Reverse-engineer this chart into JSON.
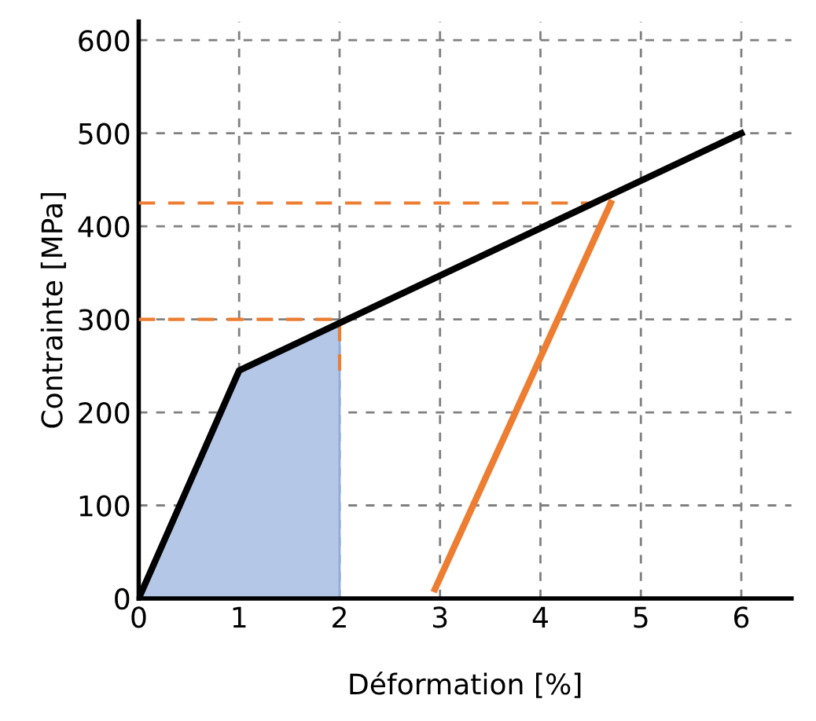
{
  "chart_data": {
    "type": "line",
    "xlabel": "Déformation [%]",
    "ylabel": "Contrainte [MPa]",
    "xlim": [
      0,
      6.5
    ],
    "ylim": [
      0,
      620
    ],
    "xticks": [
      0,
      1,
      2,
      3,
      4,
      5,
      6
    ],
    "yticks": [
      0,
      100,
      200,
      300,
      400,
      500,
      600
    ],
    "grid": true,
    "series": [
      {
        "type": "area",
        "color": "#b4c7e7",
        "x": [
          0,
          1,
          2
        ],
        "values": [
          0,
          245,
          295
        ]
      },
      {
        "color": "#ed7d31",
        "line_style": "dashed",
        "x": [
          0,
          2,
          2
        ],
        "values": [
          300,
          300,
          245
        ]
      },
      {
        "color": "#ed7d31",
        "line_style": "dashed",
        "x": [
          0,
          4.7
        ],
        "values": [
          425,
          425
        ]
      },
      {
        "color": "#000000",
        "line_style": "solid",
        "x": [
          0,
          1,
          6
        ],
        "values": [
          0,
          245,
          500
        ]
      },
      {
        "color": "#ed7d31",
        "line_style": "solid",
        "x": [
          2.95,
          4.7
        ],
        "values": [
          10,
          425
        ]
      }
    ]
  }
}
